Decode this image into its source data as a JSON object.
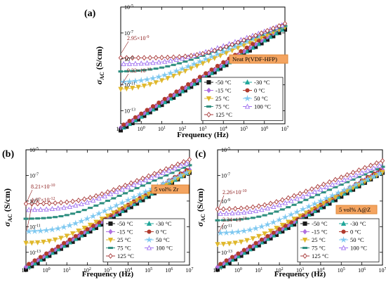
{
  "chart_data": [
    {
      "panel": "(a)",
      "type": "line",
      "xlabel": "Frequency (Hz)",
      "ylabel_main": "σ",
      "ylabel_sub": "AC",
      "ylabel_unit": " (S/cm)",
      "xscale": "log",
      "yscale": "log",
      "xlim": [
        0.1,
        10000000
      ],
      "ylim": [
        1e-14,
        1e-05
      ],
      "xticks": [
        "10-1",
        "100",
        "101",
        "102",
        "103",
        "104",
        "105",
        "106",
        "107"
      ],
      "yticks": [
        "10-13",
        "10-11",
        "10-9",
        "10-7",
        "10-5"
      ],
      "tag": "Neat P(VDF-HFP)",
      "annotations": [
        {
          "text": "2.95×10-9",
          "x": 0.1,
          "y": 2.95e-09
        },
        {
          "text": "9.32×10-12",
          "x": 0.1,
          "y": 9.32e-12
        }
      ],
      "legend": "bottom-right",
      "series": [
        {
          "name": "-50 °C",
          "color": "#1a1a1a",
          "marker": "square",
          "sdc": 0,
          "sac": 3e-14,
          "n": 0.98,
          "cap": 1.2e-06
        },
        {
          "name": "-30 °C",
          "color": "#20a79a",
          "marker": "triangle",
          "sdc": 0,
          "sac": 3.6e-14,
          "n": 0.98,
          "cap": 3.5e-06
        },
        {
          "name": "-15 °C",
          "color": "#b070e0",
          "marker": "diamond",
          "sdc": 0,
          "sac": 4.8e-14,
          "n": 0.98,
          "cap": 9e-06
        },
        {
          "name": "0 °C",
          "color": "#b03a2e",
          "marker": "circle",
          "sdc": 0,
          "sac": 6e-14,
          "n": 0.99,
          "cap": 2e-05
        },
        {
          "name": "25 °C",
          "color": "#e0b82c",
          "marker": "triangle-down",
          "sdc": 4e-12,
          "sac": 3.6e-12,
          "n": 0.7,
          "cap": 4e-05
        },
        {
          "name": "50 °C",
          "color": "#7ec8f0",
          "marker": "star",
          "sdc": 1.5e-11,
          "sac": 7e-12,
          "n": 0.68,
          "cap": 5e-05
        },
        {
          "name": "75 °C",
          "color": "#2f8f80",
          "marker": "dash",
          "sdc": 1e-10,
          "sac": 3e-11,
          "n": 0.58,
          "cap": 6e-05
        },
        {
          "name": "100 °C",
          "color": "#a070f0",
          "marker": "triangle-up-open",
          "sdc": 4e-10,
          "sac": 5e-11,
          "n": 0.57,
          "cap": 7e-05
        },
        {
          "name": "125 °C",
          "color": "#a83a3a",
          "marker": "diamond-open",
          "sdc": 1.2e-09,
          "sac": 1.5e-11,
          "n": 0.65,
          "cap": 8e-05
        }
      ]
    },
    {
      "panel": "(b)",
      "type": "line",
      "xlabel": "Frequency (Hz)",
      "ylabel_main": "σ",
      "ylabel_sub": "AC",
      "ylabel_unit": " (S/cm)",
      "xscale": "log",
      "yscale": "log",
      "xlim": [
        0.1,
        10000000
      ],
      "ylim": [
        1e-14,
        1e-05
      ],
      "xticks": [
        "10-1",
        "100",
        "101",
        "102",
        "103",
        "104",
        "105",
        "106",
        "107"
      ],
      "yticks": [
        "10-13",
        "10-11",
        "10-9",
        "10-7",
        "10-5"
      ],
      "tag": "5 vol% Zr",
      "annotations": [
        {
          "text": "8.21×10-10",
          "x": 0.1,
          "y": 8.21e-10
        },
        {
          "text": "4.67×10-12",
          "x": 0.1,
          "y": 4.67e-12
        }
      ],
      "legend": "bottom-right",
      "series": [
        {
          "name": "-50 °C",
          "color": "#1a1a1a",
          "marker": "square",
          "sdc": 0,
          "sac": 4e-14,
          "n": 0.95,
          "cap": 2e-06
        },
        {
          "name": "-30 °C",
          "color": "#20a79a",
          "marker": "triangle",
          "sdc": 0,
          "sac": 5e-14,
          "n": 0.95,
          "cap": 4e-06
        },
        {
          "name": "-15 °C",
          "color": "#b070e0",
          "marker": "diamond",
          "sdc": 0,
          "sac": 6.5e-14,
          "n": 0.95,
          "cap": 8e-06
        },
        {
          "name": "0 °C",
          "color": "#b03a2e",
          "marker": "circle",
          "sdc": 0,
          "sac": 8e-14,
          "n": 0.95,
          "cap": 1.5e-05
        },
        {
          "name": "25 °C",
          "color": "#e0b82c",
          "marker": "triangle-down",
          "sdc": 5e-13,
          "sac": 2e-13,
          "n": 0.85,
          "cap": 2.5e-05
        },
        {
          "name": "50 °C",
          "color": "#7ec8f0",
          "marker": "star",
          "sdc": 4e-12,
          "sac": 1.2e-12,
          "n": 0.75,
          "cap": 3.5e-05
        },
        {
          "name": "75 °C",
          "color": "#2f8f80",
          "marker": "dash",
          "sdc": 4e-11,
          "sac": 8e-12,
          "n": 0.7,
          "cap": 5e-05
        },
        {
          "name": "100 °C",
          "color": "#a070f0",
          "marker": "triangle-up-open",
          "sdc": 2e-10,
          "sac": 3e-11,
          "n": 0.65,
          "cap": 6e-05
        },
        {
          "name": "125 °C",
          "color": "#a83a3a",
          "marker": "diamond-open",
          "sdc": 6e-10,
          "sac": 5e-11,
          "n": 0.65,
          "cap": 7e-05
        }
      ]
    },
    {
      "panel": "(c)",
      "type": "line",
      "xlabel": "Frequency (Hz)",
      "ylabel_main": "σ",
      "ylabel_sub": "AC",
      "ylabel_unit": " (S/cm)",
      "xscale": "log",
      "yscale": "log",
      "xlim": [
        0.1,
        10000000
      ],
      "ylim": [
        1e-14,
        1e-05
      ],
      "xticks": [
        "10-1",
        "100",
        "101",
        "102",
        "103",
        "104",
        "105",
        "106",
        "107"
      ],
      "yticks": [
        "10-13",
        "10-11",
        "10-9",
        "10-7",
        "10-5"
      ],
      "tag": "5 vol% A@Z",
      "annotations": [
        {
          "text": "2.26×10-10",
          "x": 0.1,
          "y": 2.26e-10
        },
        {
          "text": "3.34×10-12",
          "x": 0.1,
          "y": 3.34e-12
        }
      ],
      "legend": "bottom-right",
      "series": [
        {
          "name": "-50 °C",
          "color": "#1a1a1a",
          "marker": "square",
          "sdc": 0,
          "sac": 4e-14,
          "n": 0.95,
          "cap": 2e-06
        },
        {
          "name": "-30 °C",
          "color": "#20a79a",
          "marker": "triangle",
          "sdc": 0,
          "sac": 5e-14,
          "n": 0.95,
          "cap": 4e-06
        },
        {
          "name": "-15 °C",
          "color": "#b070e0",
          "marker": "diamond",
          "sdc": 0,
          "sac": 6.5e-14,
          "n": 0.95,
          "cap": 8e-06
        },
        {
          "name": "0 °C",
          "color": "#b03a2e",
          "marker": "circle",
          "sdc": 0,
          "sac": 8e-14,
          "n": 0.95,
          "cap": 1.5e-05
        },
        {
          "name": "25 °C",
          "color": "#e0b82c",
          "marker": "triangle-down",
          "sdc": 4e-13,
          "sac": 2e-13,
          "n": 0.85,
          "cap": 2.5e-05
        },
        {
          "name": "50 °C",
          "color": "#7ec8f0",
          "marker": "star",
          "sdc": 3e-12,
          "sac": 1e-12,
          "n": 0.75,
          "cap": 3.5e-05
        },
        {
          "name": "75 °C",
          "color": "#2f8f80",
          "marker": "dash",
          "sdc": 3e-11,
          "sac": 6e-12,
          "n": 0.7,
          "cap": 5e-05
        },
        {
          "name": "100 °C",
          "color": "#a070f0",
          "marker": "triangle-up-open",
          "sdc": 1e-10,
          "sac": 2e-11,
          "n": 0.65,
          "cap": 6e-05
        },
        {
          "name": "125 °C",
          "color": "#a83a3a",
          "marker": "diamond-open",
          "sdc": 2.2e-10,
          "sac": 4e-11,
          "n": 0.65,
          "cap": 7e-05
        }
      ]
    }
  ]
}
